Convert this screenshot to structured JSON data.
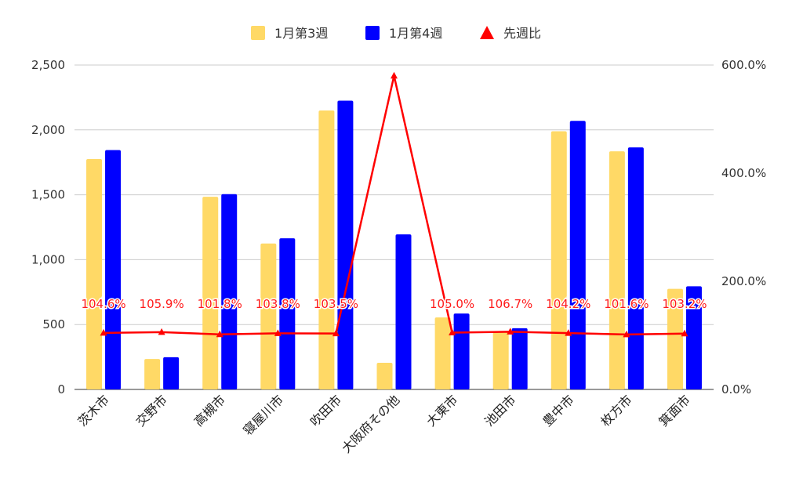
{
  "chart_data": {
    "type": "bar",
    "categories": [
      "茨木市",
      "交野市",
      "高槻市",
      "寝屋川市",
      "吹田市",
      "大阪府その他",
      "大東市",
      "池田市",
      "豊中市",
      "枚方市",
      "箕面市"
    ],
    "series": [
      {
        "name": "1月第3週",
        "type": "bar",
        "axis": "left",
        "color": "#FFD966",
        "values": [
          1775,
          235,
          1485,
          1125,
          2150,
          205,
          555,
          440,
          1990,
          1835,
          775
        ]
      },
      {
        "name": "1月第4週",
        "type": "bar",
        "axis": "left",
        "color": "#0000FF",
        "values": [
          1845,
          248,
          1505,
          1165,
          2225,
          1195,
          585,
          472,
          2070,
          1865,
          795
        ]
      },
      {
        "name": "先週比",
        "type": "line",
        "axis": "right",
        "color": "#FF0000",
        "marker": "triangle",
        "values": [
          104.6,
          105.9,
          101.8,
          103.8,
          103.5,
          580.0,
          105.0,
          106.7,
          104.2,
          101.6,
          103.2
        ],
        "labels": [
          "104.6%",
          "105.9%",
          "101.8%",
          "103.8%",
          "103.5%",
          "",
          "105.0%",
          "106.7%",
          "104.2%",
          "101.6%",
          "103.2%"
        ]
      }
    ],
    "y_left": {
      "min": 0,
      "max": 2500,
      "ticks": [
        0,
        500,
        1000,
        1500,
        2000,
        2500
      ],
      "tick_labels": [
        "0",
        "500",
        "1,000",
        "1,500",
        "2,000",
        "2,500"
      ]
    },
    "y_right": {
      "min": 0,
      "max": 600,
      "ticks": [
        0,
        200,
        400,
        600
      ],
      "tick_labels": [
        "0.0%",
        "200.0%",
        "400.0%",
        "600.0%"
      ]
    },
    "grid": true,
    "legend": "top-center",
    "title": "",
    "xlabel": "",
    "ylabel": ""
  }
}
